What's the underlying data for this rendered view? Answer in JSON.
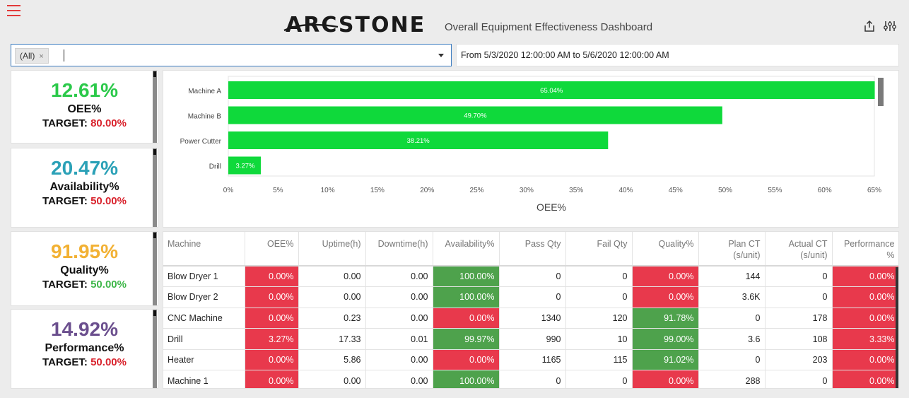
{
  "header": {
    "logo_text": "ARCSTONE",
    "title": "Overall Equipment Effectiveness Dashboard"
  },
  "filter": {
    "machine_chip": "(All)",
    "chip_remove": "×",
    "date_range": "From 5/3/2020 12:00:00 AM to 5/6/2020 12:00:00 AM"
  },
  "kpis": [
    {
      "value": "12.61%",
      "label": "OEE%",
      "target_label": "TARGET:",
      "target_value": "80.00%",
      "value_color": "#2bc94a",
      "target_color": "#d9232d"
    },
    {
      "value": "20.47%",
      "label": "Availability%",
      "target_label": "TARGET:",
      "target_value": "50.00%",
      "value_color": "#2ba1b7",
      "target_color": "#d9232d"
    },
    {
      "value": "91.95%",
      "label": "Quality%",
      "target_label": "TARGET:",
      "target_value": "50.00%",
      "value_color": "#f2b134",
      "target_color": "#3fb74a"
    },
    {
      "value": "14.92%",
      "label": "Performance%",
      "target_label": "TARGET:",
      "target_value": "50.00%",
      "value_color": "#6b4f8e",
      "target_color": "#d9232d"
    }
  ],
  "chart_data": {
    "type": "bar",
    "orientation": "horizontal",
    "categories": [
      "Machine A",
      "Machine B",
      "Power Cutter",
      "Drill"
    ],
    "values": [
      65.04,
      49.7,
      38.21,
      3.27
    ],
    "data_labels": [
      "65.04%",
      "49.70%",
      "38.21%",
      "3.27%"
    ],
    "xlabel": "OEE%",
    "xlim": [
      0,
      65
    ],
    "xticks": [
      "0%",
      "5%",
      "10%",
      "15%",
      "20%",
      "25%",
      "30%",
      "35%",
      "40%",
      "45%",
      "50%",
      "55%",
      "60%",
      "65%"
    ],
    "bar_color": "#0fd93b"
  },
  "table": {
    "headers": [
      {
        "l1": "Machine",
        "l2": ""
      },
      {
        "l1": "OEE%",
        "l2": ""
      },
      {
        "l1": "Uptime(h)",
        "l2": ""
      },
      {
        "l1": "Downtime(h)",
        "l2": ""
      },
      {
        "l1": "Availability%",
        "l2": ""
      },
      {
        "l1": "Pass Qty",
        "l2": ""
      },
      {
        "l1": "Fail Qty",
        "l2": ""
      },
      {
        "l1": "Quality%",
        "l2": ""
      },
      {
        "l1": "Plan CT",
        "l2": "(s/unit)"
      },
      {
        "l1": "Actual CT",
        "l2": "(s/unit)"
      },
      {
        "l1": "Performance",
        "l2": "%"
      }
    ],
    "rows": [
      {
        "machine": "Blow Dryer 1",
        "oee": "0.00%",
        "uptime": "0.00",
        "downtime": "0.00",
        "availability": "100.00%",
        "pass_qty": "0",
        "fail_qty": "0",
        "quality": "0.00%",
        "plan_ct": "144",
        "actual_ct": "0",
        "performance": "0.00%",
        "oee_status": "red",
        "availability_status": "green",
        "quality_status": "red",
        "performance_status": "red"
      },
      {
        "machine": "Blow Dryer 2",
        "oee": "0.00%",
        "uptime": "0.00",
        "downtime": "0.00",
        "availability": "100.00%",
        "pass_qty": "0",
        "fail_qty": "0",
        "quality": "0.00%",
        "plan_ct": "3.6K",
        "actual_ct": "0",
        "performance": "0.00%",
        "oee_status": "red",
        "availability_status": "green",
        "quality_status": "red",
        "performance_status": "red"
      },
      {
        "machine": "CNC Machine",
        "oee": "0.00%",
        "uptime": "0.23",
        "downtime": "0.00",
        "availability": "0.00%",
        "pass_qty": "1340",
        "fail_qty": "120",
        "quality": "91.78%",
        "plan_ct": "0",
        "actual_ct": "178",
        "performance": "0.00%",
        "oee_status": "red",
        "availability_status": "red",
        "quality_status": "green",
        "performance_status": "red"
      },
      {
        "machine": "Drill",
        "oee": "3.27%",
        "uptime": "17.33",
        "downtime": "0.01",
        "availability": "99.97%",
        "pass_qty": "990",
        "fail_qty": "10",
        "quality": "99.00%",
        "plan_ct": "3.6",
        "actual_ct": "108",
        "performance": "3.33%",
        "oee_status": "red",
        "availability_status": "green",
        "quality_status": "green",
        "performance_status": "red"
      },
      {
        "machine": "Heater",
        "oee": "0.00%",
        "uptime": "5.86",
        "downtime": "0.00",
        "availability": "0.00%",
        "pass_qty": "1165",
        "fail_qty": "115",
        "quality": "91.02%",
        "plan_ct": "0",
        "actual_ct": "203",
        "performance": "0.00%",
        "oee_status": "red",
        "availability_status": "red",
        "quality_status": "green",
        "performance_status": "red"
      },
      {
        "machine": "Machine 1",
        "oee": "0.00%",
        "uptime": "0.00",
        "downtime": "0.00",
        "availability": "100.00%",
        "pass_qty": "0",
        "fail_qty": "0",
        "quality": "0.00%",
        "plan_ct": "288",
        "actual_ct": "0",
        "performance": "0.00%",
        "oee_status": "red",
        "availability_status": "green",
        "quality_status": "red",
        "performance_status": "red"
      }
    ]
  },
  "icons": {
    "menu": "hamburger-menu-icon",
    "share": "share-icon",
    "settings": "settings-sliders-icon",
    "dropdown": "dropdown-arrow-icon",
    "remove": "chip-remove-icon"
  }
}
